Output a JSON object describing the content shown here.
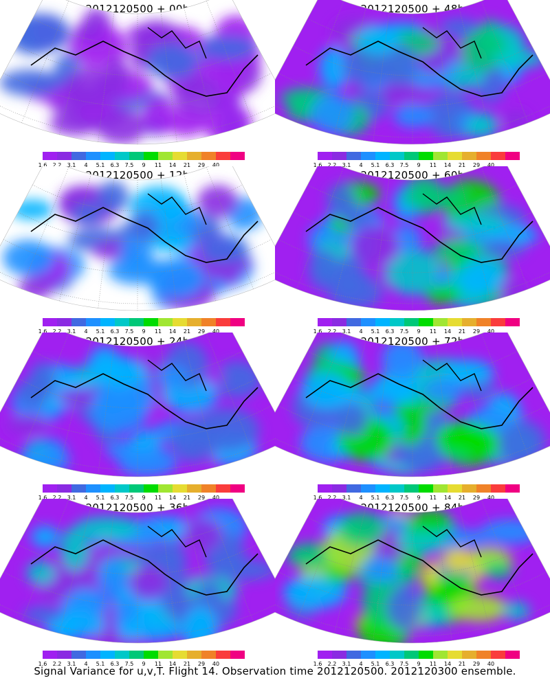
{
  "legend": {
    "labels": [
      "1.6",
      "2.2",
      "3.1",
      "4",
      "5.1",
      "6.3",
      "7.5",
      "9",
      "11",
      "14",
      "21",
      "29",
      "40"
    ],
    "colors": [
      "#a020f0",
      "#8a2be2",
      "#4169e1",
      "#1e90ff",
      "#00b4ff",
      "#00c8c8",
      "#00c878",
      "#00dc00",
      "#a0e632",
      "#e6dc32",
      "#e6af2d",
      "#f08228",
      "#fa3c3c",
      "#f00082"
    ]
  },
  "panels": [
    {
      "title": "2012120500 + 00h",
      "intensity": 0.15
    },
    {
      "title": "2012120500 + 48h",
      "intensity": 0.55
    },
    {
      "title": "2012120500 + 12h",
      "intensity": 0.3
    },
    {
      "title": "2012120500 + 60h",
      "intensity": 0.62
    },
    {
      "title": "2012120500 + 24h",
      "intensity": 0.38
    },
    {
      "title": "2012120500 + 72h",
      "intensity": 0.7
    },
    {
      "title": "2012120500 + 36h",
      "intensity": 0.45
    },
    {
      "title": "2012120500 + 84h",
      "intensity": 0.8
    }
  ],
  "caption": "Signal Variance for u,v,T. Flight 14. Observation time 2012120500. 2012120300 ensemble."
}
